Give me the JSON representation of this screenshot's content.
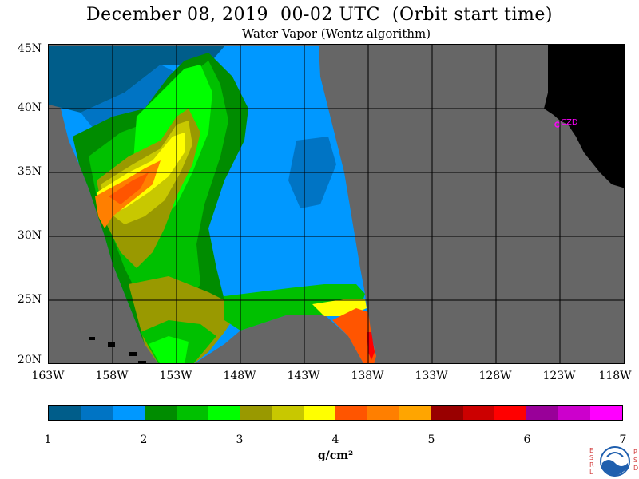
{
  "header": {
    "title": "December 08, 2019  00-02 UTC  (Orbit start time)",
    "subtitle": "Water Vapor (Wentz algorithm)"
  },
  "map": {
    "lat_labels": [
      "45N",
      "40N",
      "35N",
      "30N",
      "25N",
      "20N"
    ],
    "lon_labels": [
      "163W",
      "158W",
      "153W",
      "148W",
      "143W",
      "138W",
      "133W",
      "128W",
      "123W",
      "118W"
    ],
    "station_label": "CZD",
    "colors": {
      "no_data": "#666666",
      "land": "#000000",
      "station": "#ff00ff"
    }
  },
  "colorbar": {
    "labels": [
      "1",
      "2",
      "3",
      "4",
      "5",
      "6",
      "7"
    ],
    "units": "g/cm²",
    "colors": [
      "#005d8a",
      "#0074c4",
      "#0098ff",
      "#008c00",
      "#00c000",
      "#00ff00",
      "#999900",
      "#c8c800",
      "#ffff00",
      "#ff5500",
      "#ff7f00",
      "#ffa500",
      "#990000",
      "#cc0000",
      "#ff0000",
      "#990099",
      "#cc00cc",
      "#ff00ff"
    ]
  },
  "logo": {
    "left_letters": [
      "E",
      "S",
      "R",
      "L"
    ],
    "right_letters": [
      "P",
      "S",
      "D"
    ]
  }
}
